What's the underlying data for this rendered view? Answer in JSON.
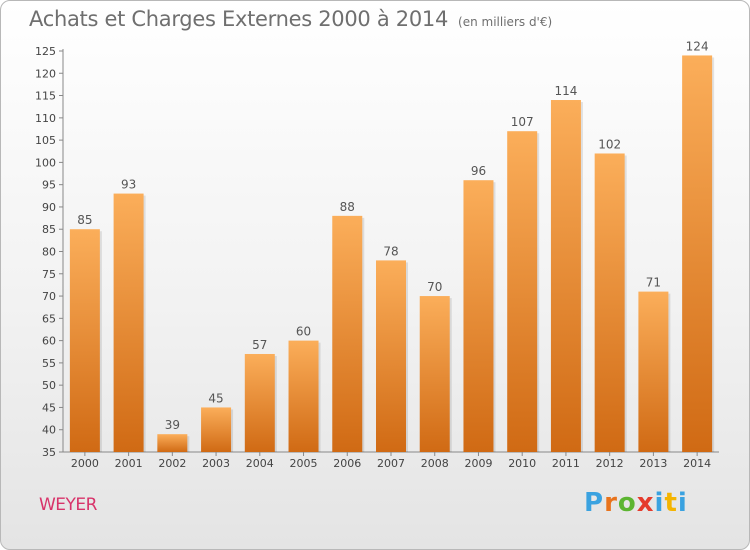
{
  "header": {
    "title": "Achats et Charges Externes 2000 à 2014",
    "unit": "(en milliers d'€)"
  },
  "footer": {
    "commune": "WEYER",
    "brand": "Proxiti",
    "brand_letters": [
      "P",
      "r",
      "o",
      "x",
      "i",
      "t",
      "i"
    ],
    "brand_colors": [
      "#3aa2e0",
      "#e8731c",
      "#5cb531",
      "#e53b2c",
      "#3aa2e0",
      "#f4b400",
      "#3aa2e0"
    ]
  },
  "colors": {
    "bar_light": "#fbae5a",
    "bar_dark": "#d06a14",
    "commune_text": "#d8336a"
  },
  "chart_data": {
    "type": "bar",
    "categories": [
      "2000",
      "2001",
      "2002",
      "2003",
      "2004",
      "2005",
      "2006",
      "2007",
      "2008",
      "2009",
      "2010",
      "2011",
      "2012",
      "2013",
      "2014"
    ],
    "values": [
      85,
      93,
      39,
      45,
      57,
      60,
      88,
      78,
      70,
      96,
      107,
      114,
      102,
      71,
      124
    ],
    "title": "Achats et Charges Externes 2000 à 2014",
    "subtitle": "(en milliers d'€)",
    "ylim": [
      35,
      125
    ],
    "yticks": [
      35,
      40,
      45,
      50,
      55,
      60,
      65,
      70,
      75,
      80,
      85,
      90,
      95,
      100,
      105,
      110,
      115,
      120,
      125
    ],
    "grid": false,
    "legend": "none"
  }
}
